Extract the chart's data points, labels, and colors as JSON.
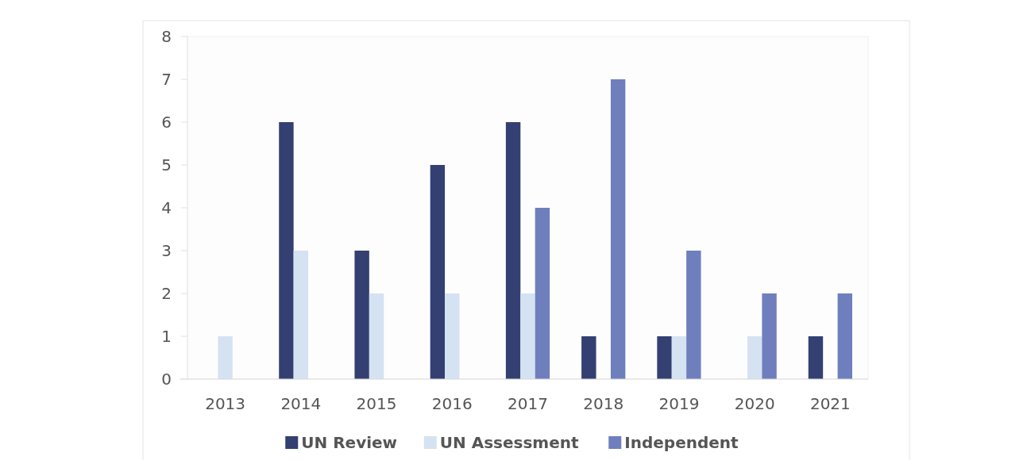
{
  "chart_data": {
    "type": "bar",
    "categories": [
      "2013",
      "2014",
      "2015",
      "2016",
      "2017",
      "2018",
      "2019",
      "2020",
      "2021"
    ],
    "series": [
      {
        "name": "UN Review",
        "color": "#344072",
        "values": [
          0,
          6,
          3,
          5,
          6,
          1,
          1,
          0,
          1
        ]
      },
      {
        "name": "UN Assessment",
        "color": "#d5e2f2",
        "values": [
          1,
          3,
          2,
          2,
          2,
          0,
          1,
          1,
          0
        ]
      },
      {
        "name": "Independent",
        "color": "#6f7fbd",
        "values": [
          0,
          0,
          0,
          0,
          4,
          7,
          3,
          2,
          2
        ]
      }
    ],
    "ylim": [
      0,
      8
    ],
    "yticks": [
      0,
      1,
      2,
      3,
      4,
      5,
      6,
      7,
      8
    ],
    "legend": "bottom"
  }
}
